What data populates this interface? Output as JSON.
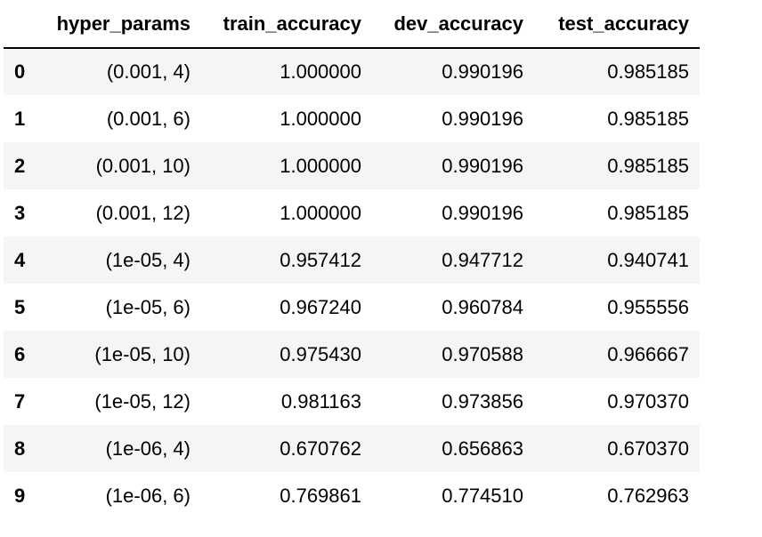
{
  "table": {
    "index_header": "",
    "columns": [
      "hyper_params",
      "train_accuracy",
      "dev_accuracy",
      "test_accuracy"
    ],
    "rows": [
      {
        "index": "0",
        "cells": [
          "(0.001, 4)",
          "1.000000",
          "0.990196",
          "0.985185"
        ]
      },
      {
        "index": "1",
        "cells": [
          "(0.001, 6)",
          "1.000000",
          "0.990196",
          "0.985185"
        ]
      },
      {
        "index": "2",
        "cells": [
          "(0.001, 10)",
          "1.000000",
          "0.990196",
          "0.985185"
        ]
      },
      {
        "index": "3",
        "cells": [
          "(0.001, 12)",
          "1.000000",
          "0.990196",
          "0.985185"
        ]
      },
      {
        "index": "4",
        "cells": [
          "(1e-05, 4)",
          "0.957412",
          "0.947712",
          "0.940741"
        ]
      },
      {
        "index": "5",
        "cells": [
          "(1e-05, 6)",
          "0.967240",
          "0.960784",
          "0.955556"
        ]
      },
      {
        "index": "6",
        "cells": [
          "(1e-05, 10)",
          "0.975430",
          "0.970588",
          "0.966667"
        ]
      },
      {
        "index": "7",
        "cells": [
          "(1e-05, 12)",
          "0.981163",
          "0.973856",
          "0.970370"
        ]
      },
      {
        "index": "8",
        "cells": [
          "(1e-06, 4)",
          "0.670762",
          "0.656863",
          "0.670370"
        ]
      },
      {
        "index": "9",
        "cells": [
          "(1e-06, 6)",
          "0.769861",
          "0.774510",
          "0.762963"
        ]
      }
    ]
  },
  "colors": {
    "stripe": "#f5f5f5",
    "background": "#ffffff",
    "header_rule": "#000000"
  }
}
